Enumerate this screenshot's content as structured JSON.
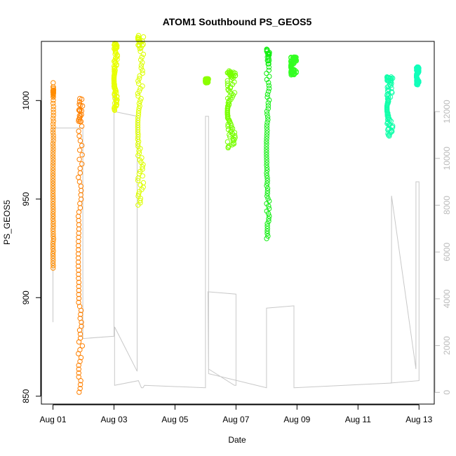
{
  "chart_data": {
    "type": "scatter",
    "title": "ATOM1 Southbound PS_GEOS5",
    "xlabel": "Date",
    "ylabel": "PS_GEOS5",
    "x_unit": "day of August",
    "xlim": [
      0.62,
      13.5
    ],
    "ylim": [
      846,
      1030
    ],
    "y2lim": [
      -500,
      15000
    ],
    "x_ticks": [
      1,
      3,
      5,
      7,
      9,
      11,
      13
    ],
    "x_tick_labels": [
      "Aug 01",
      "Aug 03",
      "Aug 05",
      "Aug 07",
      "Aug 09",
      "Aug 11",
      "Aug 13"
    ],
    "y_ticks": [
      850,
      900,
      950,
      1000
    ],
    "y2_ticks": [
      0,
      2000,
      4000,
      6000,
      8000,
      10000,
      12000
    ],
    "colors": {
      "aug01": "#ff8c00",
      "aug02": "#ff8000",
      "aug03": "#e8ff00",
      "aug04": "#ddff00",
      "aug06": "#8cff00",
      "aug07": "#77ff00",
      "aug08": "#11ee11",
      "aug09": "#33ff22",
      "aug12": "#11ffaa",
      "aug13": "#11ffbb",
      "altitude": "#c8c8c8"
    },
    "ps_series": [
      {
        "day": "Aug 01",
        "color_key": "aug01",
        "x_start": 1.0,
        "x_end": 1.02,
        "y_top": 1009,
        "y_bottom": 915
      },
      {
        "day": "Aug 02",
        "color_key": "aug02",
        "x_start": 1.83,
        "x_end": 1.98,
        "y_top": 1001,
        "y_bottom": 852
      },
      {
        "day": "Aug 03",
        "color_key": "aug03",
        "x_start": 3.0,
        "x_end": 3.12,
        "y_top": 1029,
        "y_bottom": 995
      },
      {
        "day": "Aug 04",
        "color_key": "aug04",
        "x_start": 3.78,
        "x_end": 4.0,
        "y_top": 1033,
        "y_bottom": 947
      },
      {
        "day": "Aug 06",
        "color_key": "aug06",
        "x_start": 6.0,
        "x_end": 6.1,
        "y_top": 1011,
        "y_bottom": 1009
      },
      {
        "day": "Aug 07",
        "color_key": "aug07",
        "x_start": 6.72,
        "x_end": 7.0,
        "y_top": 1015,
        "y_bottom": 976
      },
      {
        "day": "Aug 08",
        "color_key": "aug08",
        "x_start": 8.0,
        "x_end": 8.1,
        "y_top": 1026,
        "y_bottom": 930
      },
      {
        "day": "Aug 09",
        "color_key": "aug09",
        "x_start": 8.8,
        "x_end": 9.0,
        "y_top": 1022,
        "y_bottom": 1013
      },
      {
        "day": "Aug 12",
        "color_key": "aug12",
        "x_start": 11.95,
        "x_end": 12.15,
        "y_top": 1012,
        "y_bottom": 982
      },
      {
        "day": "Aug 13",
        "color_key": "aug13",
        "x_start": 12.92,
        "x_end": 13.0,
        "y_top": 1017,
        "y_bottom": 1008
      }
    ],
    "altitude_path": [
      [
        1.0,
        3000
      ],
      [
        1.0,
        11300
      ],
      [
        1.98,
        11300
      ],
      [
        1.98,
        2300
      ],
      [
        3.0,
        2400
      ],
      [
        3.0,
        13400
      ],
      [
        3.02,
        12000
      ],
      [
        3.76,
        11800
      ],
      [
        3.76,
        900
      ],
      [
        3.02,
        2800
      ],
      [
        3.02,
        300
      ],
      [
        3.8,
        500
      ],
      [
        3.9,
        200
      ],
      [
        3.95,
        200
      ],
      [
        4.0,
        300
      ],
      [
        6.0,
        200
      ],
      [
        6.0,
        11800
      ],
      [
        6.1,
        11800
      ],
      [
        6.1,
        3200
      ],
      [
        6.1,
        1000
      ],
      [
        6.95,
        300
      ],
      [
        7.0,
        300
      ],
      [
        7.0,
        4200
      ],
      [
        6.08,
        4300
      ],
      [
        6.1,
        800
      ],
      [
        8.0,
        200
      ],
      [
        8.0,
        3600
      ],
      [
        8.9,
        3700
      ],
      [
        8.9,
        200
      ],
      [
        12.1,
        400
      ],
      [
        12.1,
        8400
      ],
      [
        12.9,
        1000
      ],
      [
        12.9,
        9000
      ],
      [
        13.0,
        9000
      ],
      [
        13.0,
        500
      ],
      [
        12.05,
        400
      ]
    ]
  }
}
